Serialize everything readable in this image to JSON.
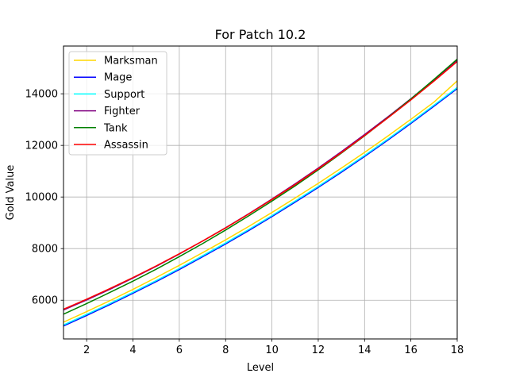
{
  "chart_data": {
    "type": "line",
    "title": "For Patch 10.2",
    "xlabel": "Level",
    "ylabel": "Gold Value",
    "xlim": [
      1,
      18
    ],
    "ylim": [
      4500,
      15850
    ],
    "xticks": [
      2,
      4,
      6,
      8,
      10,
      12,
      14,
      16,
      18
    ],
    "yticks": [
      6000,
      8000,
      10000,
      12000,
      14000
    ],
    "grid": true,
    "legend_position": "top-left",
    "x": [
      1,
      2,
      3,
      4,
      5,
      6,
      7,
      8,
      9,
      10,
      11,
      12,
      13,
      14,
      15,
      16,
      17,
      18
    ],
    "series": [
      {
        "name": "Marksman",
        "color": "#FFD700",
        "values": [
          5150,
          5560,
          5980,
          6420,
          6880,
          7350,
          7840,
          8340,
          8860,
          9400,
          9960,
          10530,
          11120,
          11730,
          12360,
          13010,
          13680,
          14500
        ]
      },
      {
        "name": "Mage",
        "color": "#0000FF",
        "values": [
          5000,
          5410,
          5830,
          6270,
          6720,
          7190,
          7680,
          8180,
          8700,
          9240,
          9800,
          10370,
          10960,
          11570,
          12200,
          12850,
          13520,
          14200
        ]
      },
      {
        "name": "Support",
        "color": "#00FFFF",
        "values": [
          5040,
          5450,
          5870,
          6310,
          6760,
          7230,
          7720,
          8220,
          8740,
          9280,
          9840,
          10410,
          11000,
          11610,
          12240,
          12890,
          13560,
          14240
        ]
      },
      {
        "name": "Fighter",
        "color": "#800080",
        "values": [
          5620,
          6010,
          6420,
          6860,
          7310,
          7790,
          8290,
          8810,
          9350,
          9920,
          10510,
          11120,
          11760,
          12420,
          13100,
          13810,
          14540,
          15290
        ]
      },
      {
        "name": "Tank",
        "color": "#008000",
        "values": [
          5460,
          5870,
          6300,
          6740,
          7200,
          7690,
          8190,
          8720,
          9270,
          9840,
          10430,
          11050,
          11700,
          12370,
          13070,
          13800,
          14560,
          15340
        ]
      },
      {
        "name": "Assassin",
        "color": "#FF0000",
        "values": [
          5650,
          6040,
          6450,
          6880,
          7330,
          7800,
          8290,
          8800,
          9340,
          9900,
          10480,
          11090,
          11720,
          12380,
          13060,
          13760,
          14490,
          15250
        ]
      }
    ]
  }
}
